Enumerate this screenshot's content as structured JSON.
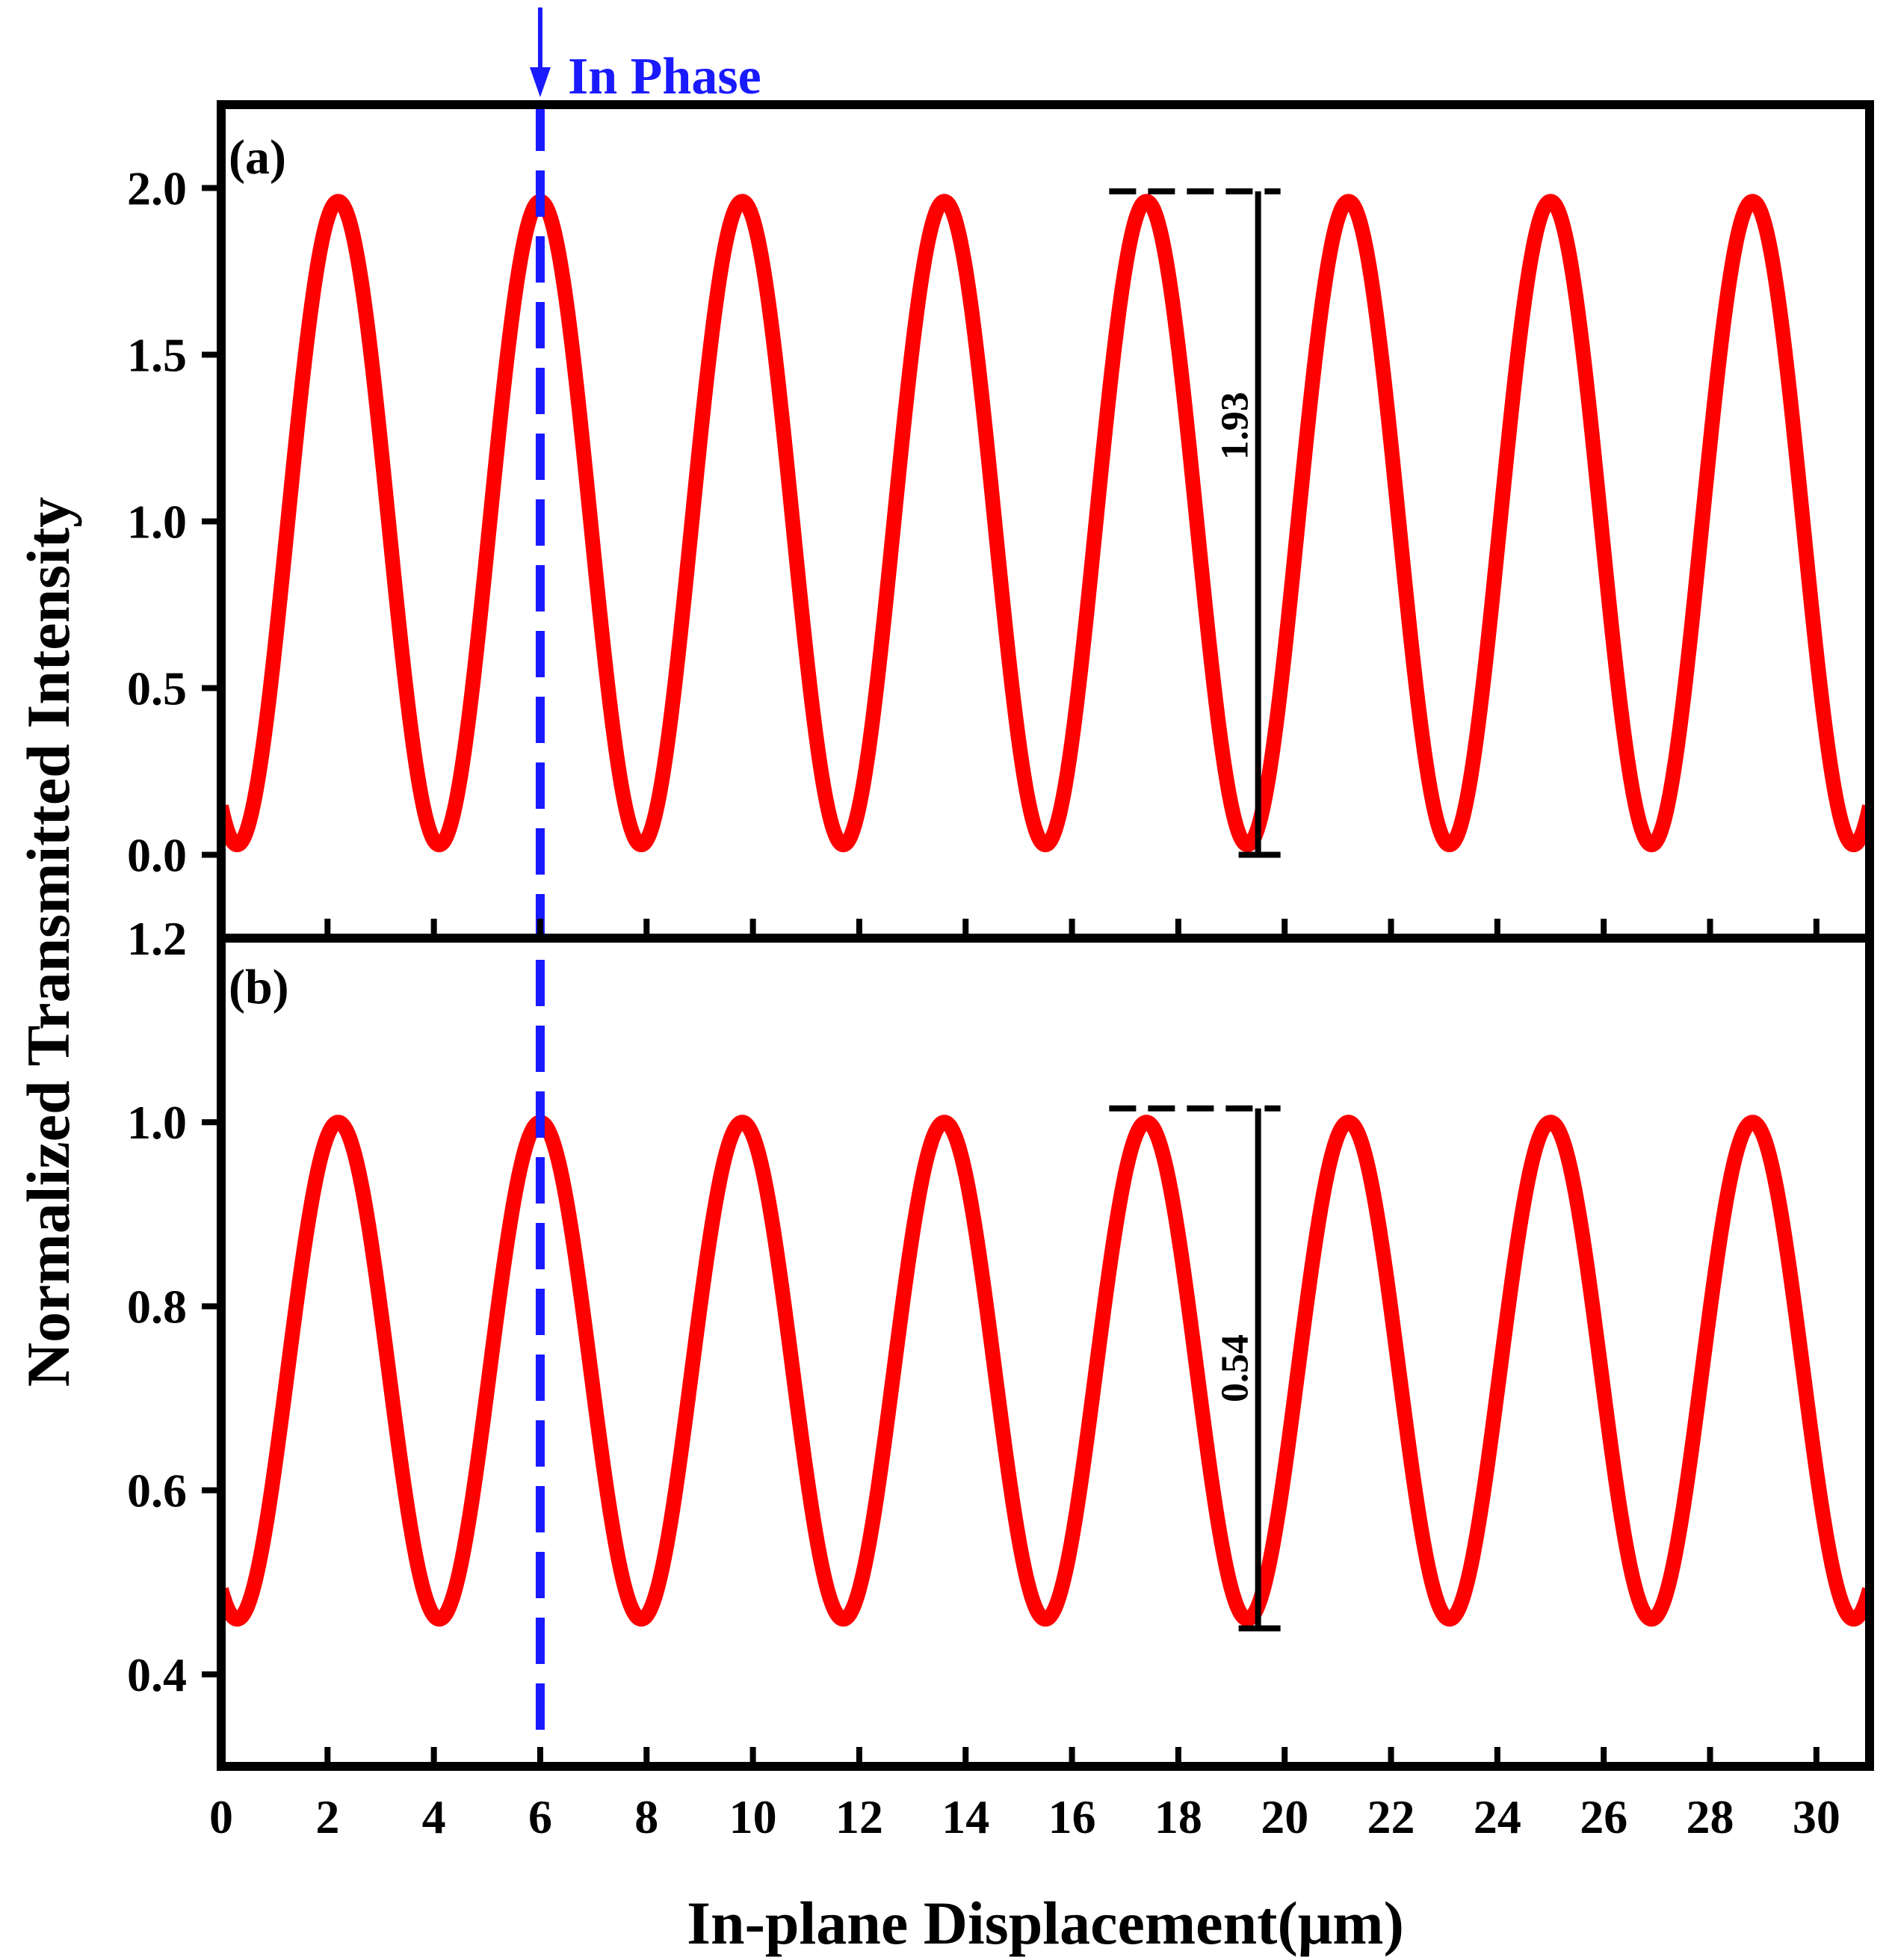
{
  "chart_data": {
    "type": "line",
    "xlabel": "In-plane Displacement(μm)",
    "ylabel": "Normalized Transmitted Intensity",
    "xlim": [
      0,
      31
    ],
    "xticks": [
      "0",
      "2",
      "4",
      "6",
      "8",
      "10",
      "12",
      "14",
      "16",
      "18",
      "20",
      "22",
      "24",
      "26",
      "28",
      "30"
    ],
    "in_phase": {
      "label": "In Phase",
      "x": 6,
      "color": "#1a1aff"
    },
    "series_color": "#ff0000",
    "panels": [
      {
        "label": "(a)",
        "ylim": [
          -0.25,
          2.25
        ],
        "yticks": [
          "0.0",
          "0.5",
          "1.0",
          "1.5",
          "2.0"
        ],
        "curve": {
          "min": 0.03,
          "max": 1.96,
          "period": 3.8,
          "first_peak_x": 2.2
        },
        "annotation": {
          "text": "1.93",
          "x": 19.5,
          "y_bottom": 0.0,
          "y_top": 1.99,
          "dash_x_start": 16.7
        }
      },
      {
        "label": "(b)",
        "ylim": [
          0.3,
          1.2
        ],
        "top_tick": "1.2",
        "yticks": [
          "0.4",
          "0.6",
          "0.8",
          "1.0"
        ],
        "curve": {
          "min": 0.46,
          "max": 1.0,
          "period": 3.8,
          "first_peak_x": 2.2
        },
        "annotation": {
          "text": "0.54",
          "x": 19.5,
          "y_bottom": 0.45,
          "y_top": 1.015,
          "dash_x_start": 16.7
        }
      }
    ]
  }
}
